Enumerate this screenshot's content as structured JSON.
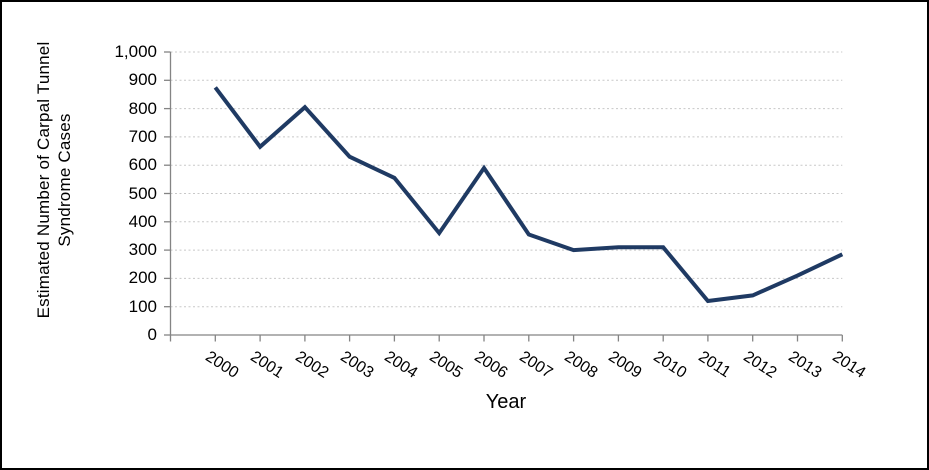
{
  "chart_data": {
    "type": "line",
    "title": "",
    "categories": [
      "2000",
      "2001",
      "2002",
      "2003",
      "2004",
      "2005",
      "2006",
      "2007",
      "2008",
      "2009",
      "2010",
      "2011",
      "2012",
      "2013",
      "2014"
    ],
    "series": [
      {
        "name": "Estimated Number of Carpal Tunnel Syndrome Cases",
        "values": [
          875,
          665,
          805,
          630,
          555,
          360,
          590,
          355,
          300,
          310,
          310,
          120,
          140,
          210,
          285
        ]
      }
    ],
    "xlabel": "Year",
    "ylabel": "Estimated Number of Carpal Tunnel Syndrome Cases",
    "ylabel_lines": [
      "Estimated Number of Carpal Tunnel",
      "Syndrome Cases"
    ],
    "ylim": [
      0,
      1000
    ],
    "ytick_step": 100,
    "ytick_labels": [
      "0",
      "100",
      "200",
      "300",
      "400",
      "500",
      "600",
      "700",
      "800",
      "900",
      "1,000"
    ],
    "xtick_rotation_deg": 33,
    "grid": "horizontal dotted",
    "legend": "none",
    "markers": "none",
    "colors": {
      "line": "#1F3A63",
      "axis": "#848484",
      "gridline": "#C8C8C8",
      "text": "#000000",
      "background": "#FFFFFF",
      "border": "#000000"
    }
  }
}
